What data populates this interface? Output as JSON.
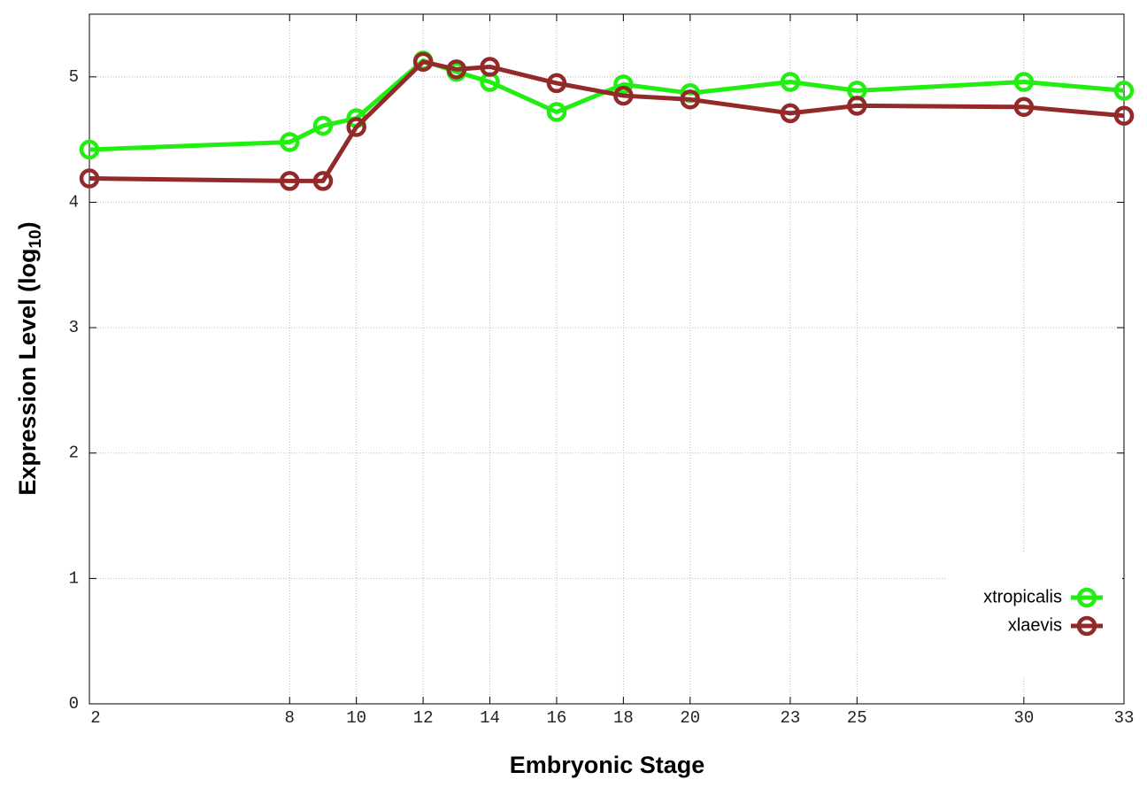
{
  "chart_data": {
    "type": "line",
    "xlabel": "Embryonic Stage",
    "ylabel": [
      "Expression Level (log",
      "10",
      ")"
    ],
    "x": [
      2,
      8,
      9,
      10,
      12,
      13,
      14,
      16,
      18,
      20,
      23,
      25,
      30,
      33
    ],
    "series": [
      {
        "name": "xtropicalis",
        "color": "#22ee11",
        "values": [
          4.42,
          4.48,
          4.61,
          4.67,
          5.13,
          5.04,
          4.96,
          4.72,
          4.94,
          4.87,
          4.96,
          4.89,
          4.96,
          4.89
        ]
      },
      {
        "name": "xlaevis",
        "color": "#932a2a",
        "values": [
          4.19,
          4.17,
          4.17,
          4.6,
          5.12,
          5.06,
          5.08,
          4.95,
          4.85,
          4.82,
          4.71,
          4.77,
          4.76,
          4.69
        ]
      }
    ],
    "xlim": [
      2,
      33
    ],
    "xticks": [
      2,
      8,
      10,
      12,
      14,
      16,
      18,
      20,
      23,
      25,
      30,
      33
    ],
    "ylim": [
      0,
      5.5
    ],
    "yticks": [
      0,
      1,
      2,
      3,
      4,
      5
    ],
    "grid": true,
    "legend": "lower right"
  }
}
